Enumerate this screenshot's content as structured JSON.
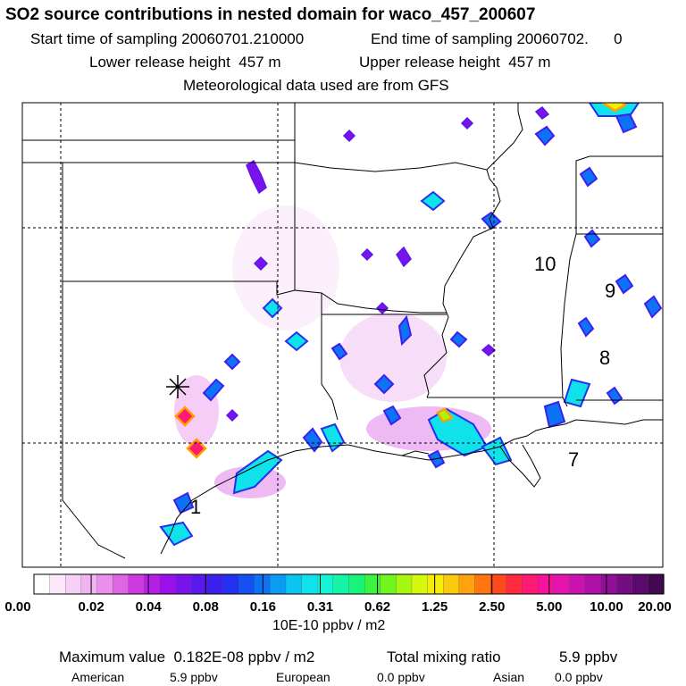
{
  "header": {
    "title": "SO2 source contributions in nested domain for waco_457_200607",
    "start_label": "Start time of sampling 20060701.210000",
    "end_label": "End time of sampling 20060702.      0",
    "lower_label": "Lower release height  457 m",
    "upper_label": "Upper release height  457 m",
    "met_label": "Meteorological data used are from GFS"
  },
  "chart_data": {
    "type": "heatmap",
    "title": "SO2 source contributions in nested domain for waco_457_200607",
    "region_labels": [
      "1",
      "7",
      "8",
      "9",
      "10"
    ],
    "colorbar": {
      "ticks": [
        "0.00",
        "0.02",
        "0.04",
        "0.08",
        "0.16",
        "0.31",
        "0.62",
        "1.25",
        "2.50",
        "5.00",
        "10.00",
        "20.00"
      ],
      "units": "10E-10 ppbv / m2",
      "colors": [
        "#ffffff",
        "#fbe8fb",
        "#f6d0f6",
        "#f0b4f0",
        "#e890ea",
        "#de66e4",
        "#cf3ae0",
        "#b81ee6",
        "#9a10ea",
        "#7a12ec",
        "#5a18ee",
        "#3c20f0",
        "#2430f0",
        "#1450f2",
        "#0c74f4",
        "#0a9cf4",
        "#0cc4f2",
        "#10e2ec",
        "#14f4d4",
        "#16f4a8",
        "#18f47a",
        "#3cf440",
        "#70f61c",
        "#a6f812",
        "#d6f80c",
        "#f6ec0a",
        "#fcca0c",
        "#fea20e",
        "#ff7610",
        "#ff4a1c",
        "#ff2a40",
        "#ff1a74",
        "#f6129a",
        "#e414ac",
        "#cc12b0",
        "#b010a8",
        "#920e98",
        "#740c84",
        "#5a0a6c",
        "#440852"
      ]
    },
    "source_marker": "source-asterisk"
  },
  "footer": {
    "max_label": "Maximum value  0.182E-08 ppbv / m2",
    "mixing_label": "Total mixing ratio",
    "mixing_value": "5.9 ppbv",
    "regions": [
      {
        "name": "American",
        "value": "5.9 ppbv"
      },
      {
        "name": "European",
        "value": "0.0 ppbv"
      },
      {
        "name": "Asian",
        "value": "0.0 ppbv"
      }
    ]
  }
}
